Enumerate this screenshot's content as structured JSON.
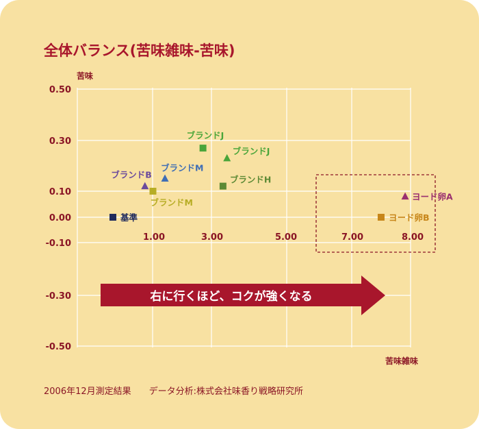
{
  "title": "全体バランス(苦味雑味-苦味)",
  "footer": {
    "survey": "2006年12月測定結果",
    "analysis": "データ分析:株式会社味香り戦略研究所"
  },
  "colors": {
    "background": "#f8e1a2",
    "grid": "#ffffff",
    "title": "#a8162c",
    "axis_text": "#8a1525",
    "arrow": "#a8162c",
    "highlight_box": "#8a1525"
  },
  "arrow_label": "右に行くほど、コクが強くなる",
  "chart_data": {
    "type": "scatter",
    "xlabel": "苦味雑味",
    "ylabel": "苦味",
    "x_ticks": [
      "1.00",
      "3.00",
      "5.00",
      "7.00",
      "8.00"
    ],
    "y_ticks": [
      "0.50",
      "0.30",
      "0.10",
      "0.00",
      "-0.10",
      "-0.30",
      "-0.50"
    ],
    "grid": true,
    "points": [
      {
        "label": "基準",
        "x": 0.0,
        "y": 0.0,
        "marker": "square",
        "color": "#1f2a5c"
      },
      {
        "label": "ブランドB",
        "x": 0.8,
        "y": 0.12,
        "marker": "triangle",
        "color": "#6a4a9c"
      },
      {
        "label": "ブランドM",
        "x": 1.0,
        "y": 0.1,
        "marker": "square",
        "color": "#b7ad26"
      },
      {
        "label": "ブランドM",
        "x": 1.3,
        "y": 0.15,
        "marker": "triangle",
        "color": "#3f6eb5"
      },
      {
        "label": "ブランドJ",
        "x": 2.25,
        "y": 0.27,
        "marker": "square",
        "color": "#4aa53a"
      },
      {
        "label": "ブランドJ",
        "x": 2.85,
        "y": 0.23,
        "marker": "triangle",
        "color": "#4aa53a"
      },
      {
        "label": "ブランドH",
        "x": 2.75,
        "y": 0.12,
        "marker": "square",
        "color": "#5d8a35"
      },
      {
        "label": "ヨード卵A",
        "x": 7.3,
        "y": 0.08,
        "marker": "triangle",
        "color": "#9a2f6f"
      },
      {
        "label": "ヨード卵B",
        "x": 6.7,
        "y": 0.0,
        "marker": "square",
        "color": "#c7861a"
      }
    ],
    "highlighted_group": [
      "ヨード卵A",
      "ヨード卵B"
    ]
  }
}
